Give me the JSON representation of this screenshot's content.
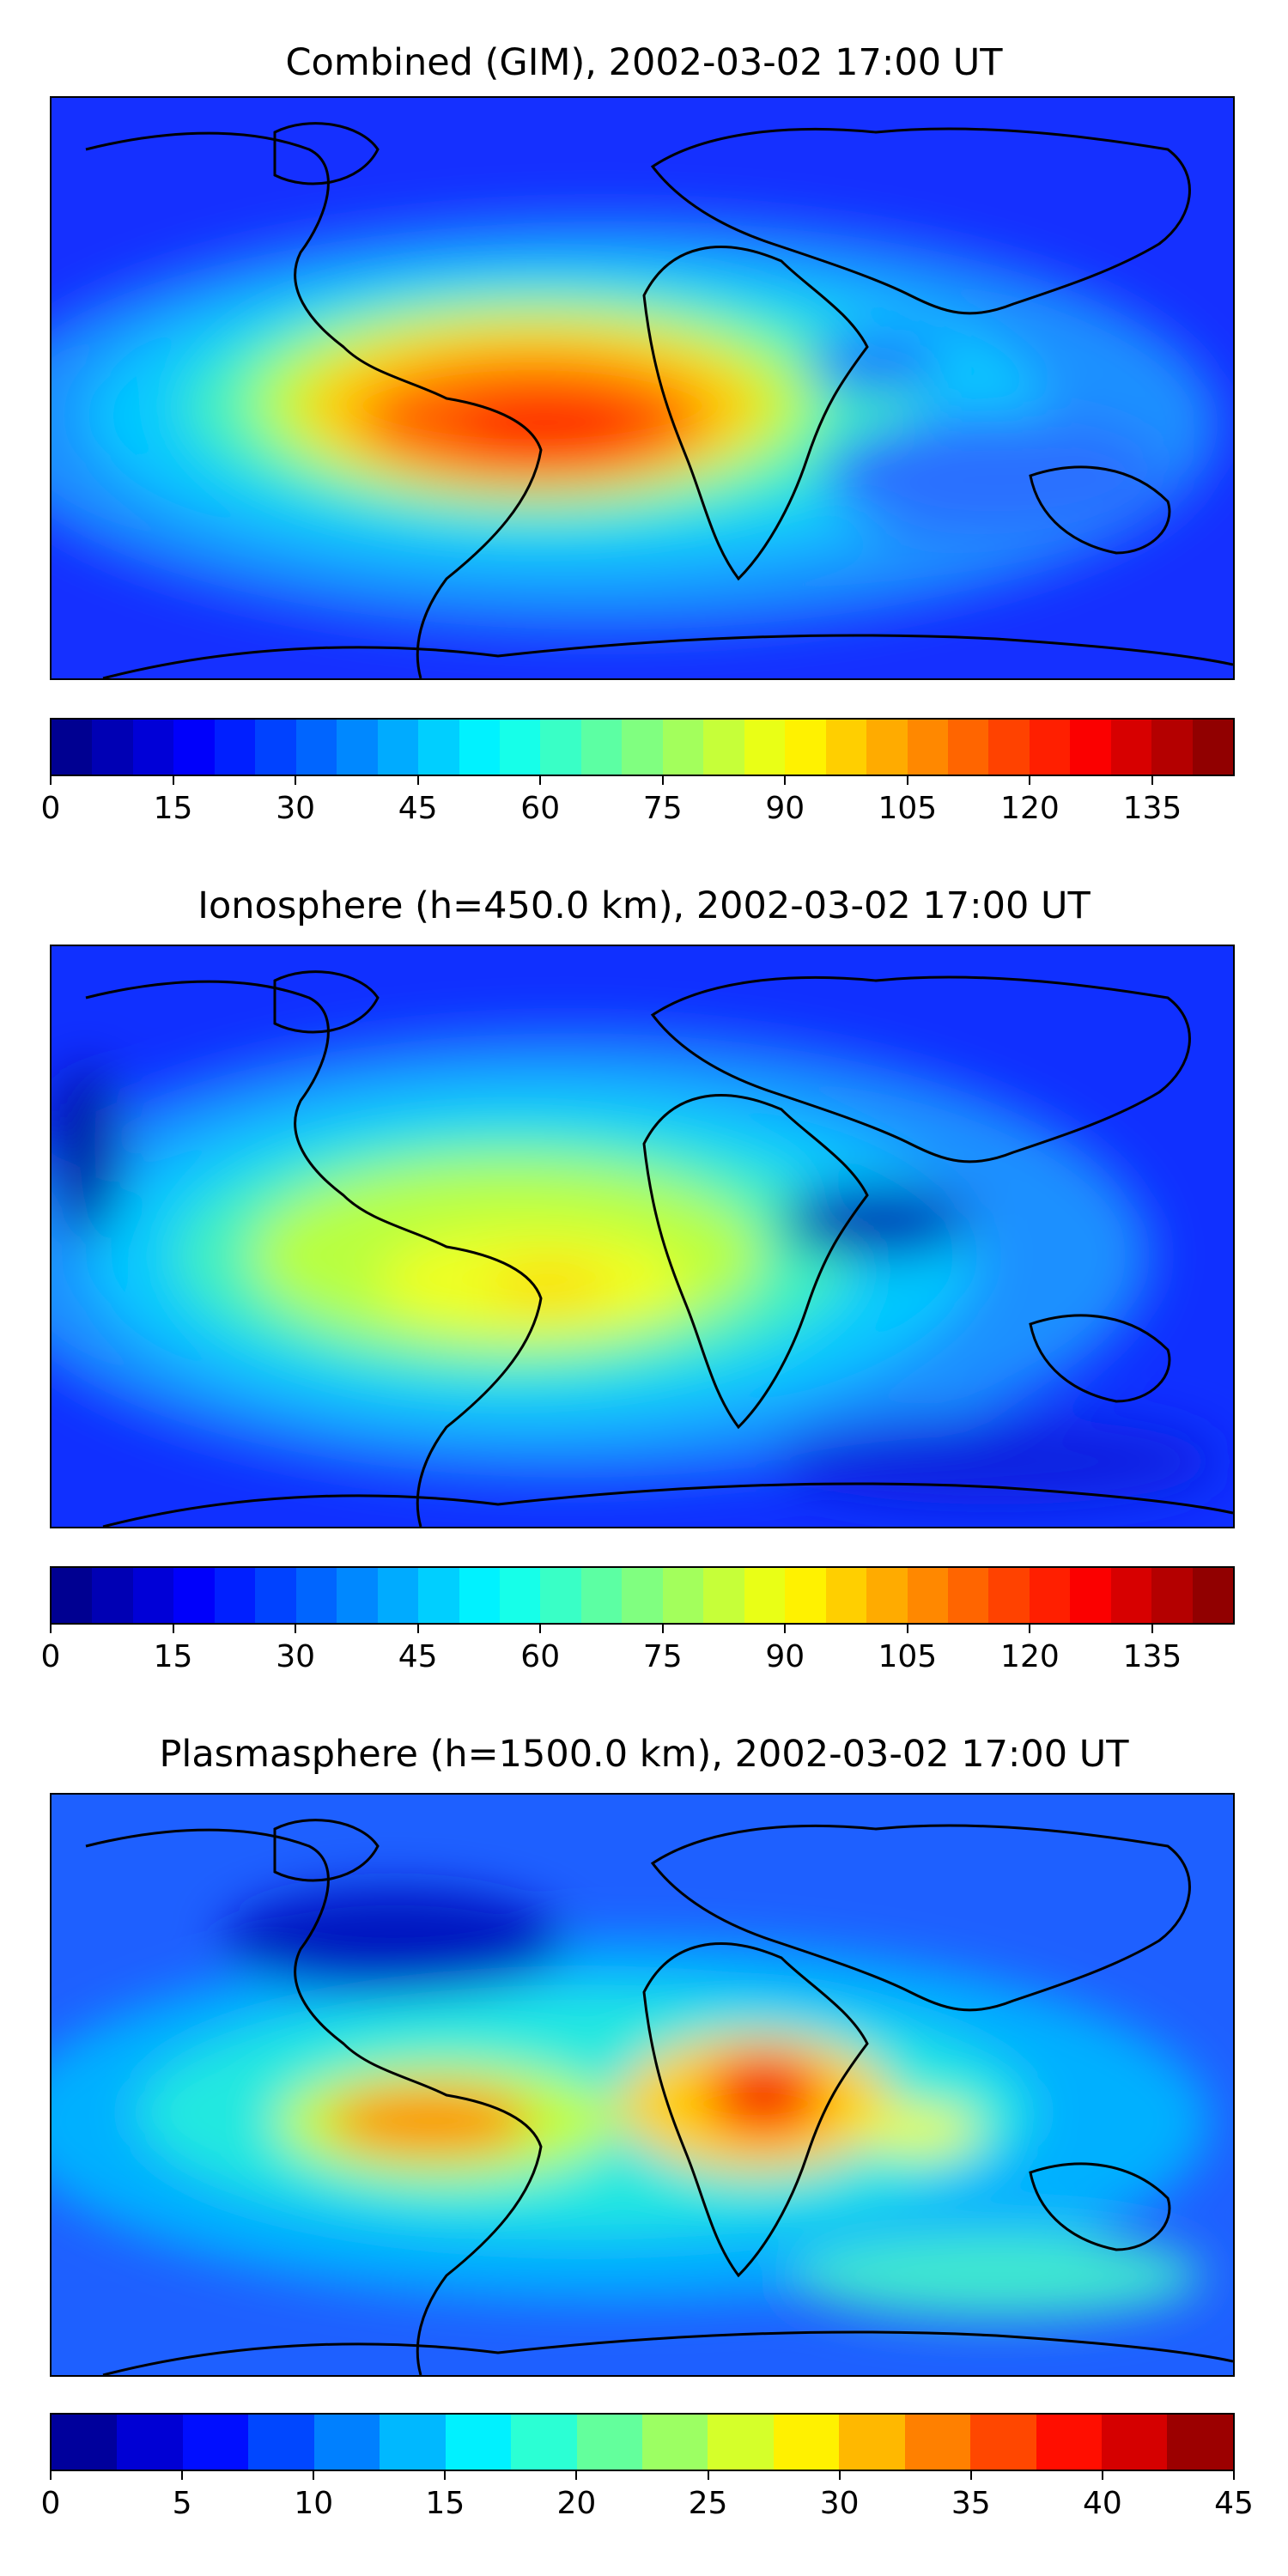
{
  "panels": [
    {
      "title": "Combined (GIM), 2002-03-02 17:00 UT",
      "colorbar": {
        "min": 0,
        "max": 145,
        "step": 5,
        "tick_labels": [
          "0",
          "15",
          "30",
          "45",
          "60",
          "75",
          "90",
          "105",
          "120",
          "135"
        ],
        "tick_values": [
          0,
          15,
          30,
          45,
          60,
          75,
          90,
          105,
          120,
          135
        ]
      }
    },
    {
      "title": "Ionosphere  (h=450.0 km), 2002-03-02 17:00 UT",
      "colorbar": {
        "min": 0,
        "max": 145,
        "step": 5,
        "tick_labels": [
          "0",
          "15",
          "30",
          "45",
          "60",
          "75",
          "90",
          "105",
          "120",
          "135"
        ],
        "tick_values": [
          0,
          15,
          30,
          45,
          60,
          75,
          90,
          105,
          120,
          135
        ]
      }
    },
    {
      "title": "Plasmasphere (h=1500.0 km), 2002-03-02 17:00 UT",
      "colorbar": {
        "min": 0,
        "max": 45,
        "step": 2.5,
        "tick_labels": [
          "0",
          "5",
          "10",
          "15",
          "20",
          "25",
          "30",
          "35",
          "40",
          "45"
        ],
        "tick_values": [
          0,
          5,
          10,
          15,
          20,
          25,
          30,
          35,
          40,
          45
        ]
      }
    }
  ],
  "colormap": "jet",
  "colors": {
    "coastline": "#000000",
    "background": "#ffffff"
  }
}
